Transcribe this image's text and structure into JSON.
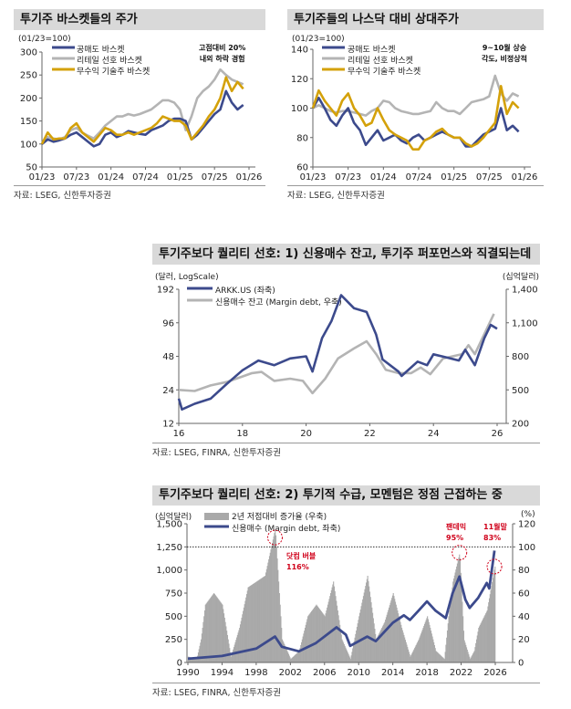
{
  "colors": {
    "navy": "#3c4a8c",
    "gray": "#b4b4b4",
    "gold": "#d4a10a",
    "bar": "#a9a9a9",
    "red": "#d0021b",
    "title_bg": "#d9d9d9"
  },
  "chart_data": [
    {
      "type": "line",
      "title": "투기주 바스켓들의 주가",
      "ylabel": "(01/23=100)",
      "ylim": [
        50,
        300
      ],
      "yticks": [
        "50",
        "100",
        "150",
        "200",
        "250",
        "300"
      ],
      "xticks": [
        "01/23",
        "07/23",
        "01/24",
        "07/24",
        "01/25",
        "07/25",
        "01/26"
      ],
      "xlim": [
        "2023-01",
        "2026-01"
      ],
      "annotation": [
        "고점대비 20%",
        "내외 하락 경험"
      ],
      "source": "자료: LSEG, 신한투자증권",
      "dates": [
        "2023-01",
        "2023-02",
        "2023-03",
        "2023-04",
        "2023-05",
        "2023-06",
        "2023-07",
        "2023-08",
        "2023-09",
        "2023-10",
        "2023-11",
        "2023-12",
        "2024-01",
        "2024-02",
        "2024-03",
        "2024-04",
        "2024-05",
        "2024-06",
        "2024-07",
        "2024-08",
        "2024-09",
        "2024-10",
        "2024-11",
        "2024-12",
        "2025-01",
        "2025-02",
        "2025-03",
        "2025-04",
        "2025-05",
        "2025-06",
        "2025-07",
        "2025-08",
        "2025-09",
        "2025-10",
        "2025-11",
        "2025-12"
      ],
      "series": [
        {
          "name": "공매도 바스켓",
          "color": "#3c4a8c",
          "values": [
            100,
            110,
            105,
            108,
            112,
            120,
            125,
            115,
            105,
            95,
            100,
            120,
            125,
            115,
            120,
            128,
            125,
            122,
            120,
            130,
            135,
            140,
            150,
            155,
            155,
            150,
            110,
            120,
            135,
            150,
            165,
            175,
            215,
            190,
            175,
            185
          ]
        },
        {
          "name": "리테일 선호 바스켓",
          "color": "#b4b4b4",
          "values": [
            100,
            115,
            112,
            110,
            115,
            130,
            135,
            125,
            118,
            112,
            125,
            140,
            150,
            160,
            160,
            165,
            162,
            165,
            170,
            175,
            185,
            195,
            195,
            190,
            175,
            130,
            160,
            200,
            215,
            225,
            240,
            262,
            250,
            240,
            235,
            230
          ]
        },
        {
          "name": "무수익 기술주 바스켓",
          "color": "#d4a10a",
          "values": [
            100,
            125,
            110,
            112,
            112,
            135,
            145,
            125,
            115,
            105,
            120,
            135,
            130,
            120,
            120,
            125,
            120,
            125,
            130,
            135,
            145,
            160,
            155,
            150,
            150,
            140,
            110,
            125,
            140,
            160,
            175,
            200,
            245,
            215,
            235,
            220
          ]
        }
      ]
    },
    {
      "type": "line",
      "title": "투기주들의 나스닥 대비 상대주가",
      "ylabel": "(01/23=100)",
      "ylim": [
        60,
        140
      ],
      "yticks": [
        "60",
        "80",
        "100",
        "120",
        "140"
      ],
      "xticks": [
        "01/23",
        "07/23",
        "01/24",
        "07/24",
        "01/25",
        "07/25",
        "01/26"
      ],
      "xlim": [
        "2023-01",
        "2026-01"
      ],
      "annotation": [
        "9~10월 상승",
        "각도, 비정상적"
      ],
      "source": "자료: LSEG, 신한투자증권",
      "dates": [
        "2023-01",
        "2023-02",
        "2023-03",
        "2023-04",
        "2023-05",
        "2023-06",
        "2023-07",
        "2023-08",
        "2023-09",
        "2023-10",
        "2023-11",
        "2023-12",
        "2024-01",
        "2024-02",
        "2024-03",
        "2024-04",
        "2024-05",
        "2024-06",
        "2024-07",
        "2024-08",
        "2024-09",
        "2024-10",
        "2024-11",
        "2024-12",
        "2025-01",
        "2025-02",
        "2025-03",
        "2025-04",
        "2025-05",
        "2025-06",
        "2025-07",
        "2025-08",
        "2025-09",
        "2025-10",
        "2025-11",
        "2025-12"
      ],
      "series": [
        {
          "name": "공매도 바스켓",
          "color": "#3c4a8c",
          "values": [
            100,
            107,
            100,
            92,
            88,
            95,
            100,
            90,
            85,
            75,
            80,
            85,
            78,
            80,
            82,
            78,
            76,
            80,
            82,
            78,
            80,
            82,
            84,
            82,
            80,
            80,
            74,
            74,
            78,
            82,
            84,
            86,
            100,
            85,
            88,
            84
          ]
        },
        {
          "name": "리테일 선호 바스켓",
          "color": "#b4b4b4",
          "values": [
            100,
            102,
            100,
            98,
            97,
            98,
            98,
            97,
            96,
            95,
            98,
            100,
            105,
            104,
            100,
            98,
            97,
            96,
            96,
            97,
            98,
            104,
            100,
            98,
            98,
            96,
            100,
            104,
            105,
            106,
            108,
            122,
            110,
            105,
            110,
            108
          ]
        },
        {
          "name": "무수익 기술주 바스켓",
          "color": "#d4a10a",
          "values": [
            100,
            112,
            105,
            100,
            95,
            105,
            110,
            100,
            95,
            88,
            90,
            100,
            92,
            85,
            82,
            80,
            78,
            72,
            72,
            78,
            80,
            84,
            86,
            82,
            80,
            80,
            76,
            74,
            76,
            80,
            85,
            90,
            115,
            96,
            104,
            100
          ]
        }
      ]
    },
    {
      "type": "line",
      "title": "투기주보다 퀄리티 선호: 1) 신용매수 잔고, 투기주 퍼포먼스와 직결되는데",
      "ylabel": "(달러, LogScale)",
      "ylabel_right": "(십억달러)",
      "ylim": [
        12,
        192
      ],
      "yscale": "log",
      "yticks": [
        "12",
        "24",
        "48",
        "96",
        "192"
      ],
      "ylim_right": [
        200,
        1400
      ],
      "yticks_right": [
        "200",
        "500",
        "800",
        "1,100",
        "1,400"
      ],
      "xlim": [
        2016,
        2026
      ],
      "xticks": [
        "16",
        "18",
        "20",
        "22",
        "24",
        "26"
      ],
      "source": "자료: LSEG, FINRA, 신한투자증권",
      "series": [
        {
          "name": "ARKK.US (좌축)",
          "axis": "left",
          "color": "#3c4a8c",
          "x": [
            2016.0,
            2016.1,
            2016.5,
            2017.0,
            2017.5,
            2018.0,
            2018.5,
            2019.0,
            2019.5,
            2020.0,
            2020.2,
            2020.5,
            2020.8,
            2021.1,
            2021.5,
            2021.9,
            2022.2,
            2022.4,
            2022.9,
            2023.0,
            2023.5,
            2023.8,
            2024.0,
            2024.4,
            2024.8,
            2025.0,
            2025.3,
            2025.6,
            2025.8,
            2026.0
          ],
          "values": [
            20,
            16,
            18,
            20,
            27,
            36,
            44,
            40,
            46,
            48,
            35,
            70,
            100,
            170,
            130,
            120,
            75,
            45,
            35,
            32,
            43,
            40,
            50,
            47,
            44,
            55,
            40,
            70,
            92,
            85
          ]
        },
        {
          "name": "신용매수 잔고 (Margin debt, 우축)",
          "axis": "right",
          "color": "#b4b4b4",
          "x": [
            2016.0,
            2016.5,
            2017.0,
            2017.5,
            2018.0,
            2018.3,
            2018.6,
            2019.0,
            2019.5,
            2019.9,
            2020.2,
            2020.6,
            2021.0,
            2021.5,
            2021.9,
            2022.2,
            2022.5,
            2022.9,
            2023.3,
            2023.6,
            2023.9,
            2024.3,
            2024.6,
            2024.9,
            2025.1,
            2025.3,
            2025.6,
            2025.9
          ],
          "values": [
            500,
            490,
            540,
            570,
            620,
            650,
            660,
            580,
            600,
            580,
            470,
            600,
            780,
            870,
            935,
            820,
            680,
            650,
            650,
            700,
            640,
            780,
            800,
            820,
            900,
            820,
            1000,
            1180
          ]
        }
      ]
    },
    {
      "type": "bar+line",
      "title": "투기주보다 퀄리티 선호: 2) 투기적 수급, 모멘텀은 정점 근접하는 중",
      "ylabel": "(십억달러)",
      "ylabel_right": "(%)",
      "ylim": [
        0,
        1500
      ],
      "yticks": [
        "0",
        "250",
        "500",
        "750",
        "1,000",
        "1,250",
        "1,500"
      ],
      "ylim_right": [
        0,
        120
      ],
      "yticks_right": [
        "0",
        "20",
        "40",
        "60",
        "80",
        "100",
        "120"
      ],
      "xlim": [
        1990,
        2028
      ],
      "xticks": [
        "1990",
        "1994",
        "1998",
        "2002",
        "2006",
        "2010",
        "2014",
        "2018",
        "2022",
        "2026"
      ],
      "reference_line": 1250,
      "source": "자료: LSEG, FINRA, 신한투자증권",
      "annotations": [
        {
          "label": "닷컴 버블",
          "value": "116%",
          "x": 2000.2
        },
        {
          "label": "팬데믹",
          "value": "95%",
          "x": 2021.8
        },
        {
          "label": "11월말",
          "value": "83%",
          "x": 2025.9
        }
      ],
      "series": [
        {
          "name": "2년 저점대비 증가율 (우축)",
          "type": "bar",
          "axis": "right",
          "color": "#a9a9a9",
          "x": [
            1990,
            1991,
            1991.5,
            1992,
            1993,
            1994,
            1995,
            1996,
            1997,
            1998,
            1999,
            2000.2,
            2001,
            2002,
            2003,
            2004,
            2005,
            2006,
            2007,
            2008,
            2009,
            2010,
            2011,
            2012,
            2013,
            2014,
            2015,
            2016,
            2017,
            2018,
            2019,
            2020,
            2020.5,
            2021,
            2021.8,
            2022.3,
            2023,
            2023.5,
            2024,
            2025,
            2025.9
          ],
          "values": [
            5,
            3,
            20,
            50,
            60,
            50,
            5,
            30,
            65,
            70,
            75,
            116,
            20,
            3,
            10,
            40,
            50,
            40,
            70,
            20,
            3,
            40,
            75,
            20,
            35,
            60,
            30,
            5,
            20,
            40,
            10,
            3,
            40,
            70,
            95,
            20,
            3,
            10,
            30,
            45,
            83
          ]
        },
        {
          "name": "신용매수 (Margin debt, 좌축)",
          "type": "line",
          "axis": "left",
          "color": "#3c4a8c",
          "x": [
            1990,
            1994,
            1998,
            2000.2,
            2001,
            2003,
            2005,
            2007.4,
            2008.5,
            2009,
            2011,
            2012,
            2014,
            2015.3,
            2016,
            2017,
            2018,
            2019,
            2020.2,
            2021,
            2021.8,
            2022.5,
            2023,
            2024,
            2025,
            2025.3,
            2025.9
          ],
          "values": [
            40,
            70,
            150,
            280,
            170,
            120,
            210,
            380,
            300,
            180,
            280,
            230,
            430,
            510,
            460,
            560,
            660,
            560,
            480,
            750,
            930,
            680,
            590,
            700,
            860,
            800,
            1210
          ]
        }
      ]
    }
  ]
}
